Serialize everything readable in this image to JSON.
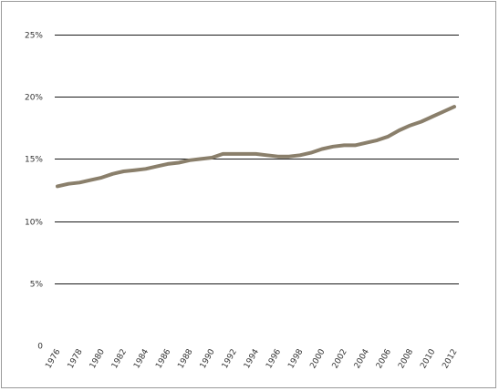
{
  "chart_data": {
    "type": "line",
    "title": "",
    "xlabel": "",
    "ylabel": "",
    "ylim": [
      0,
      25
    ],
    "y_ticks": [
      {
        "value": 0,
        "label": "0"
      },
      {
        "value": 5,
        "label": "5%"
      },
      {
        "value": 10,
        "label": "10%"
      },
      {
        "value": 15,
        "label": "15%"
      },
      {
        "value": 20,
        "label": "20%"
      },
      {
        "value": 25,
        "label": "25%"
      }
    ],
    "x_tick_labels": [
      "1976",
      "1978",
      "1980",
      "1982",
      "1984",
      "1986",
      "1988",
      "1990",
      "1992",
      "1994",
      "1996",
      "1998",
      "2000",
      "2002",
      "2004",
      "2006",
      "2008",
      "2010",
      "2012"
    ],
    "grid": "horizontal",
    "legend": "none",
    "series_color": "#8a7f6b",
    "x": [
      1976,
      1977,
      1978,
      1979,
      1980,
      1981,
      1982,
      1983,
      1984,
      1985,
      1986,
      1987,
      1988,
      1989,
      1990,
      1991,
      1992,
      1993,
      1994,
      1995,
      1996,
      1997,
      1998,
      1999,
      2000,
      2001,
      2002,
      2003,
      2004,
      2005,
      2006,
      2007,
      2008,
      2009,
      2010,
      2011,
      2012
    ],
    "series": [
      {
        "values": [
          12.8,
          13.0,
          13.1,
          13.3,
          13.5,
          13.8,
          14.0,
          14.1,
          14.2,
          14.4,
          14.6,
          14.7,
          14.9,
          15.0,
          15.1,
          15.4,
          15.4,
          15.4,
          15.4,
          15.3,
          15.2,
          15.2,
          15.3,
          15.5,
          15.8,
          16.0,
          16.1,
          16.1,
          16.3,
          16.5,
          16.8,
          17.3,
          17.7,
          18.0,
          18.4,
          18.8,
          19.2
        ]
      }
    ]
  }
}
